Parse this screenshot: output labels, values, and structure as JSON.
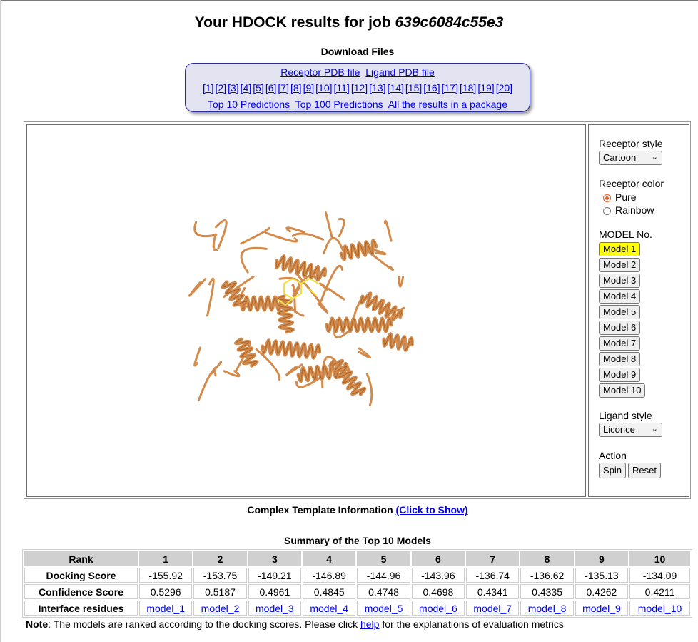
{
  "page": {
    "title_prefix": "Your HDOCK results for job",
    "job_id": "639c6084c55e3"
  },
  "downloads": {
    "heading": "Download Files",
    "receptor_pdb": "Receptor PDB file",
    "ligand_pdb": "Ligand PDB file",
    "models": [
      "[1]",
      "[2]",
      "[3]",
      "[4]",
      "[5]",
      "[6]",
      "[7]",
      "[8]",
      "[9]",
      "[10]",
      "[11]",
      "[12]",
      "[13]",
      "[14]",
      "[15]",
      "[16]",
      "[17]",
      "[18]",
      "[19]",
      "[20]"
    ],
    "top10": "Top 10 Predictions",
    "top100": "Top 100 Predictions",
    "all_results": "All the results in a package"
  },
  "viewer": {
    "protein_color": "#d38a4a",
    "ligand_color": "#f0e040"
  },
  "controls": {
    "receptor_style_label": "Receptor style",
    "receptor_style_value": "Cartoon",
    "receptor_color_label": "Receptor color",
    "color_options": [
      "Pure",
      "Rainbow"
    ],
    "color_selected": "Pure",
    "model_label": "MODEL No.",
    "model_buttons": [
      "Model 1",
      "Model 2",
      "Model 3",
      "Model 4",
      "Model 5",
      "Model 6",
      "Model 7",
      "Model 8",
      "Model 9",
      "Model 10"
    ],
    "model_selected": "Model 1",
    "ligand_style_label": "Ligand style",
    "ligand_style_value": "Licorice",
    "action_label": "Action",
    "spin_label": "Spin",
    "reset_label": "Reset"
  },
  "template_info": {
    "label": "Complex Template Information",
    "link": "(Click to Show)"
  },
  "summary": {
    "title": "Summary of the Top 10 Models",
    "header": [
      "Rank",
      "1",
      "2",
      "3",
      "4",
      "5",
      "6",
      "7",
      "8",
      "9",
      "10"
    ],
    "rows": [
      {
        "label": "Docking Score",
        "values": [
          "-155.92",
          "-153.75",
          "-149.21",
          "-146.89",
          "-144.96",
          "-143.96",
          "-136.74",
          "-136.62",
          "-135.13",
          "-134.09"
        ]
      },
      {
        "label": "Confidence Score",
        "values": [
          "0.5296",
          "0.5187",
          "0.4961",
          "0.4845",
          "0.4748",
          "0.4698",
          "0.4341",
          "0.4335",
          "0.4262",
          "0.4211"
        ]
      },
      {
        "label": "Interface residues",
        "values": [
          "model_1",
          "model_2",
          "model_3",
          "model_4",
          "model_5",
          "model_6",
          "model_7",
          "model_8",
          "model_9",
          "model_10"
        ]
      }
    ]
  },
  "note": {
    "label": "Note",
    "text_before": ": The models are ranked according to the docking scores. Please click ",
    "link": "help",
    "text_after": " for the explanations of evaluation metrics"
  }
}
